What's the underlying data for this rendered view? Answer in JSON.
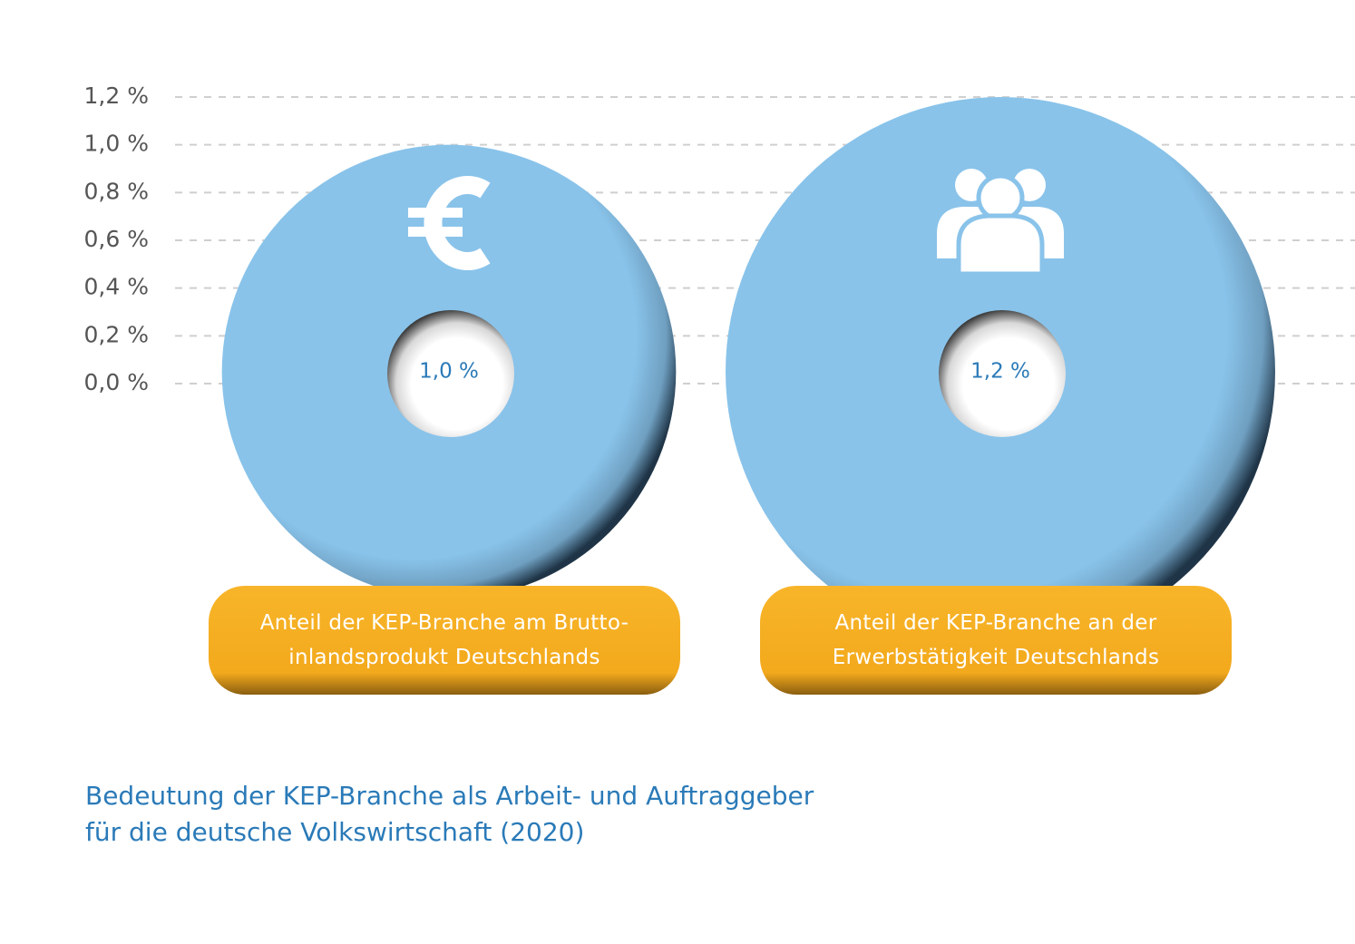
{
  "chart_data": {
    "type": "circle",
    "caption": "Bedeutung der KEP-Branche als Arbeit- und Auftraggeber\nfür die deutsche Volkswirtschaft (2020)",
    "categories": [
      "Anteil der KEP-Branche am Brutto-\ninlandsprodukt Deutschlands",
      "Anteil der KEP-Branche an der\nErwerbstätigkeit Deutschlands"
    ],
    "values": [
      1.0,
      1.2
    ],
    "value_labels": [
      "1,0 %",
      "1,2 %"
    ],
    "color": "#89c3ea",
    "label_color": "#f6b022",
    "ylim": [
      0,
      1.2
    ],
    "yticks": [
      {
        "value": 0,
        "label": "0,0 %"
      },
      {
        "value": 0.2,
        "label": "0,2 %"
      },
      {
        "value": 0.4,
        "label": "0,4 %"
      },
      {
        "value": 0.6,
        "label": "0,6 %"
      },
      {
        "value": 0.8,
        "label": "0,8 %"
      },
      {
        "value": 1.0,
        "label": "1,0 %"
      },
      {
        "value": 1.2,
        "label": "1,2 %"
      }
    ],
    "grid": true
  }
}
